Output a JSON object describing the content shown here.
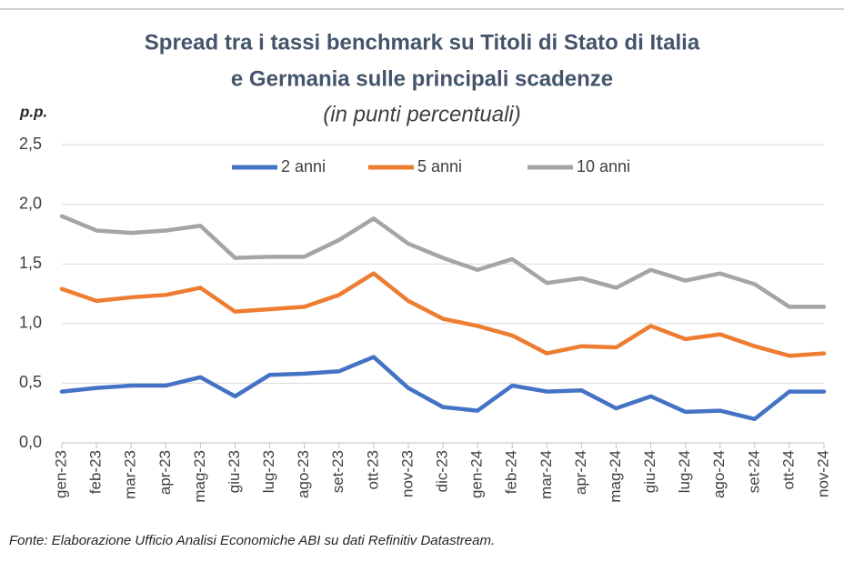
{
  "chart_data": {
    "type": "line",
    "title": [
      "Spread tra i tassi benchmark su Titoli di Stato di Italia",
      "e Germania sulle principali scadenze"
    ],
    "subtitle": "(in punti percentuali)",
    "y_label": "p.p.",
    "source": "Fonte: Elaborazione Ufficio Analisi Economiche ABI su dati Refinitiv Datastream.",
    "categories": [
      "gen-23",
      "feb-23",
      "mar-23",
      "apr-23",
      "mag-23",
      "giu-23",
      "lug-23",
      "ago-23",
      "set-23",
      "ott-23",
      "nov-23",
      "dic-23",
      "gen-24",
      "feb-24",
      "mar-24",
      "apr-24",
      "mag-24",
      "giu-24",
      "lug-24",
      "ago-24",
      "set-24",
      "ott-24",
      "nov-24"
    ],
    "series": [
      {
        "name": "2 anni",
        "color": "#4472c4",
        "values": [
          0.43,
          0.46,
          0.48,
          0.48,
          0.55,
          0.39,
          0.57,
          0.58,
          0.6,
          0.72,
          0.46,
          0.3,
          0.27,
          0.48,
          0.43,
          0.44,
          0.29,
          0.39,
          0.26,
          0.27,
          0.2,
          0.43,
          0.43
        ]
      },
      {
        "name": "5 anni",
        "color": "#ed7d31",
        "values": [
          1.29,
          1.19,
          1.22,
          1.24,
          1.3,
          1.1,
          1.12,
          1.14,
          1.24,
          1.42,
          1.19,
          1.04,
          0.98,
          0.9,
          0.75,
          0.81,
          0.8,
          0.98,
          0.87,
          0.91,
          0.81,
          0.73,
          0.75
        ]
      },
      {
        "name": "10 anni",
        "color": "#a5a5a5",
        "values": [
          1.9,
          1.78,
          1.76,
          1.78,
          1.82,
          1.55,
          1.56,
          1.56,
          1.7,
          1.88,
          1.67,
          1.55,
          1.45,
          1.54,
          1.34,
          1.38,
          1.3,
          1.45,
          1.36,
          1.42,
          1.33,
          1.14,
          1.14
        ]
      }
    ],
    "ylim": [
      0,
      2.5
    ],
    "yticks": [
      {
        "value": 0,
        "label": "0,0"
      },
      {
        "value": 0.5,
        "label": "0,5"
      },
      {
        "value": 1,
        "label": "1,0"
      },
      {
        "value": 1.5,
        "label": "1,5"
      },
      {
        "value": 2,
        "label": "2,0"
      },
      {
        "value": 2.5,
        "label": "2,5"
      }
    ],
    "grid": true,
    "legend": "top"
  }
}
